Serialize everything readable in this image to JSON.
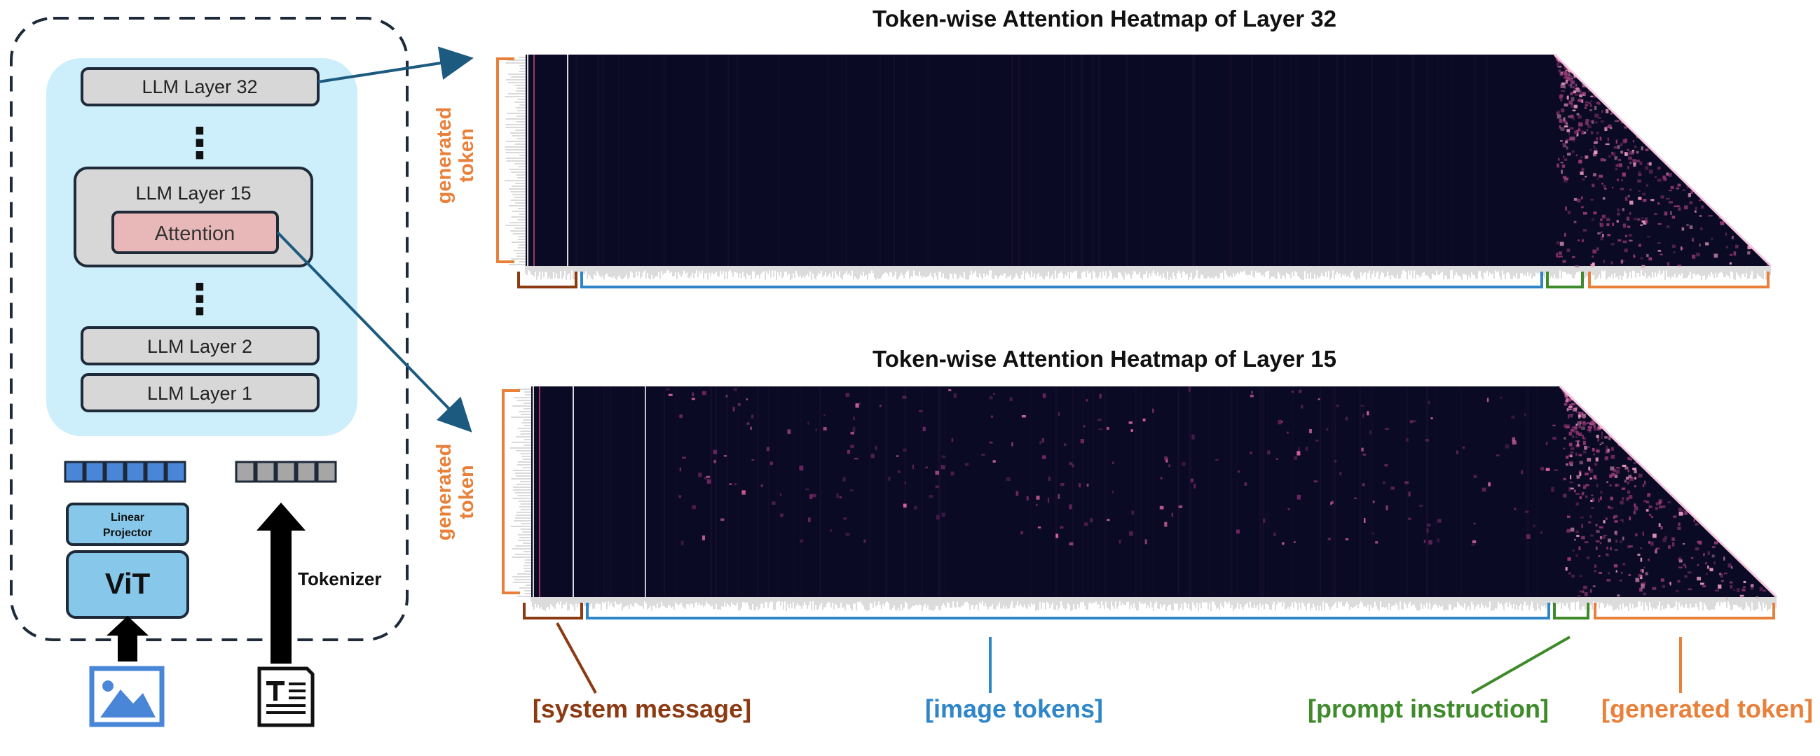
{
  "model_diagram": {
    "layers": {
      "top": "LLM Layer 32",
      "middle": "LLM Layer 15",
      "second": "LLM Layer 2",
      "first": "LLM Layer 1"
    },
    "attention_label": "Attention",
    "ellipsis": "⋮",
    "projector_label": "Linear\nProjector",
    "vit_label": "ViT",
    "tokenizer_label": "Tokenizer",
    "icons": [
      "image-icon",
      "text-document-icon"
    ],
    "colors": {
      "background_panel": "#cdeefb",
      "attention": "#e8b8b8",
      "vision_blocks": "#4a86d8",
      "text_blocks": "#a6a6a6"
    }
  },
  "heatmaps": [
    {
      "title": "Token-wise Attention Heatmap of Layer 32",
      "y_label": "generated\ntoken"
    },
    {
      "title": "Token-wise Attention Heatmap of Layer 15",
      "y_label": "generated\ntoken"
    }
  ],
  "segment_labels": {
    "system": "[system message]",
    "image": "[image tokens]",
    "prompt": "[prompt instruction]",
    "generated": "[generated token]"
  },
  "segment_colors": {
    "system": "#8b3a12",
    "image": "#2e86c8",
    "prompt": "#3f8a2a",
    "generated": "#e8803a"
  }
}
